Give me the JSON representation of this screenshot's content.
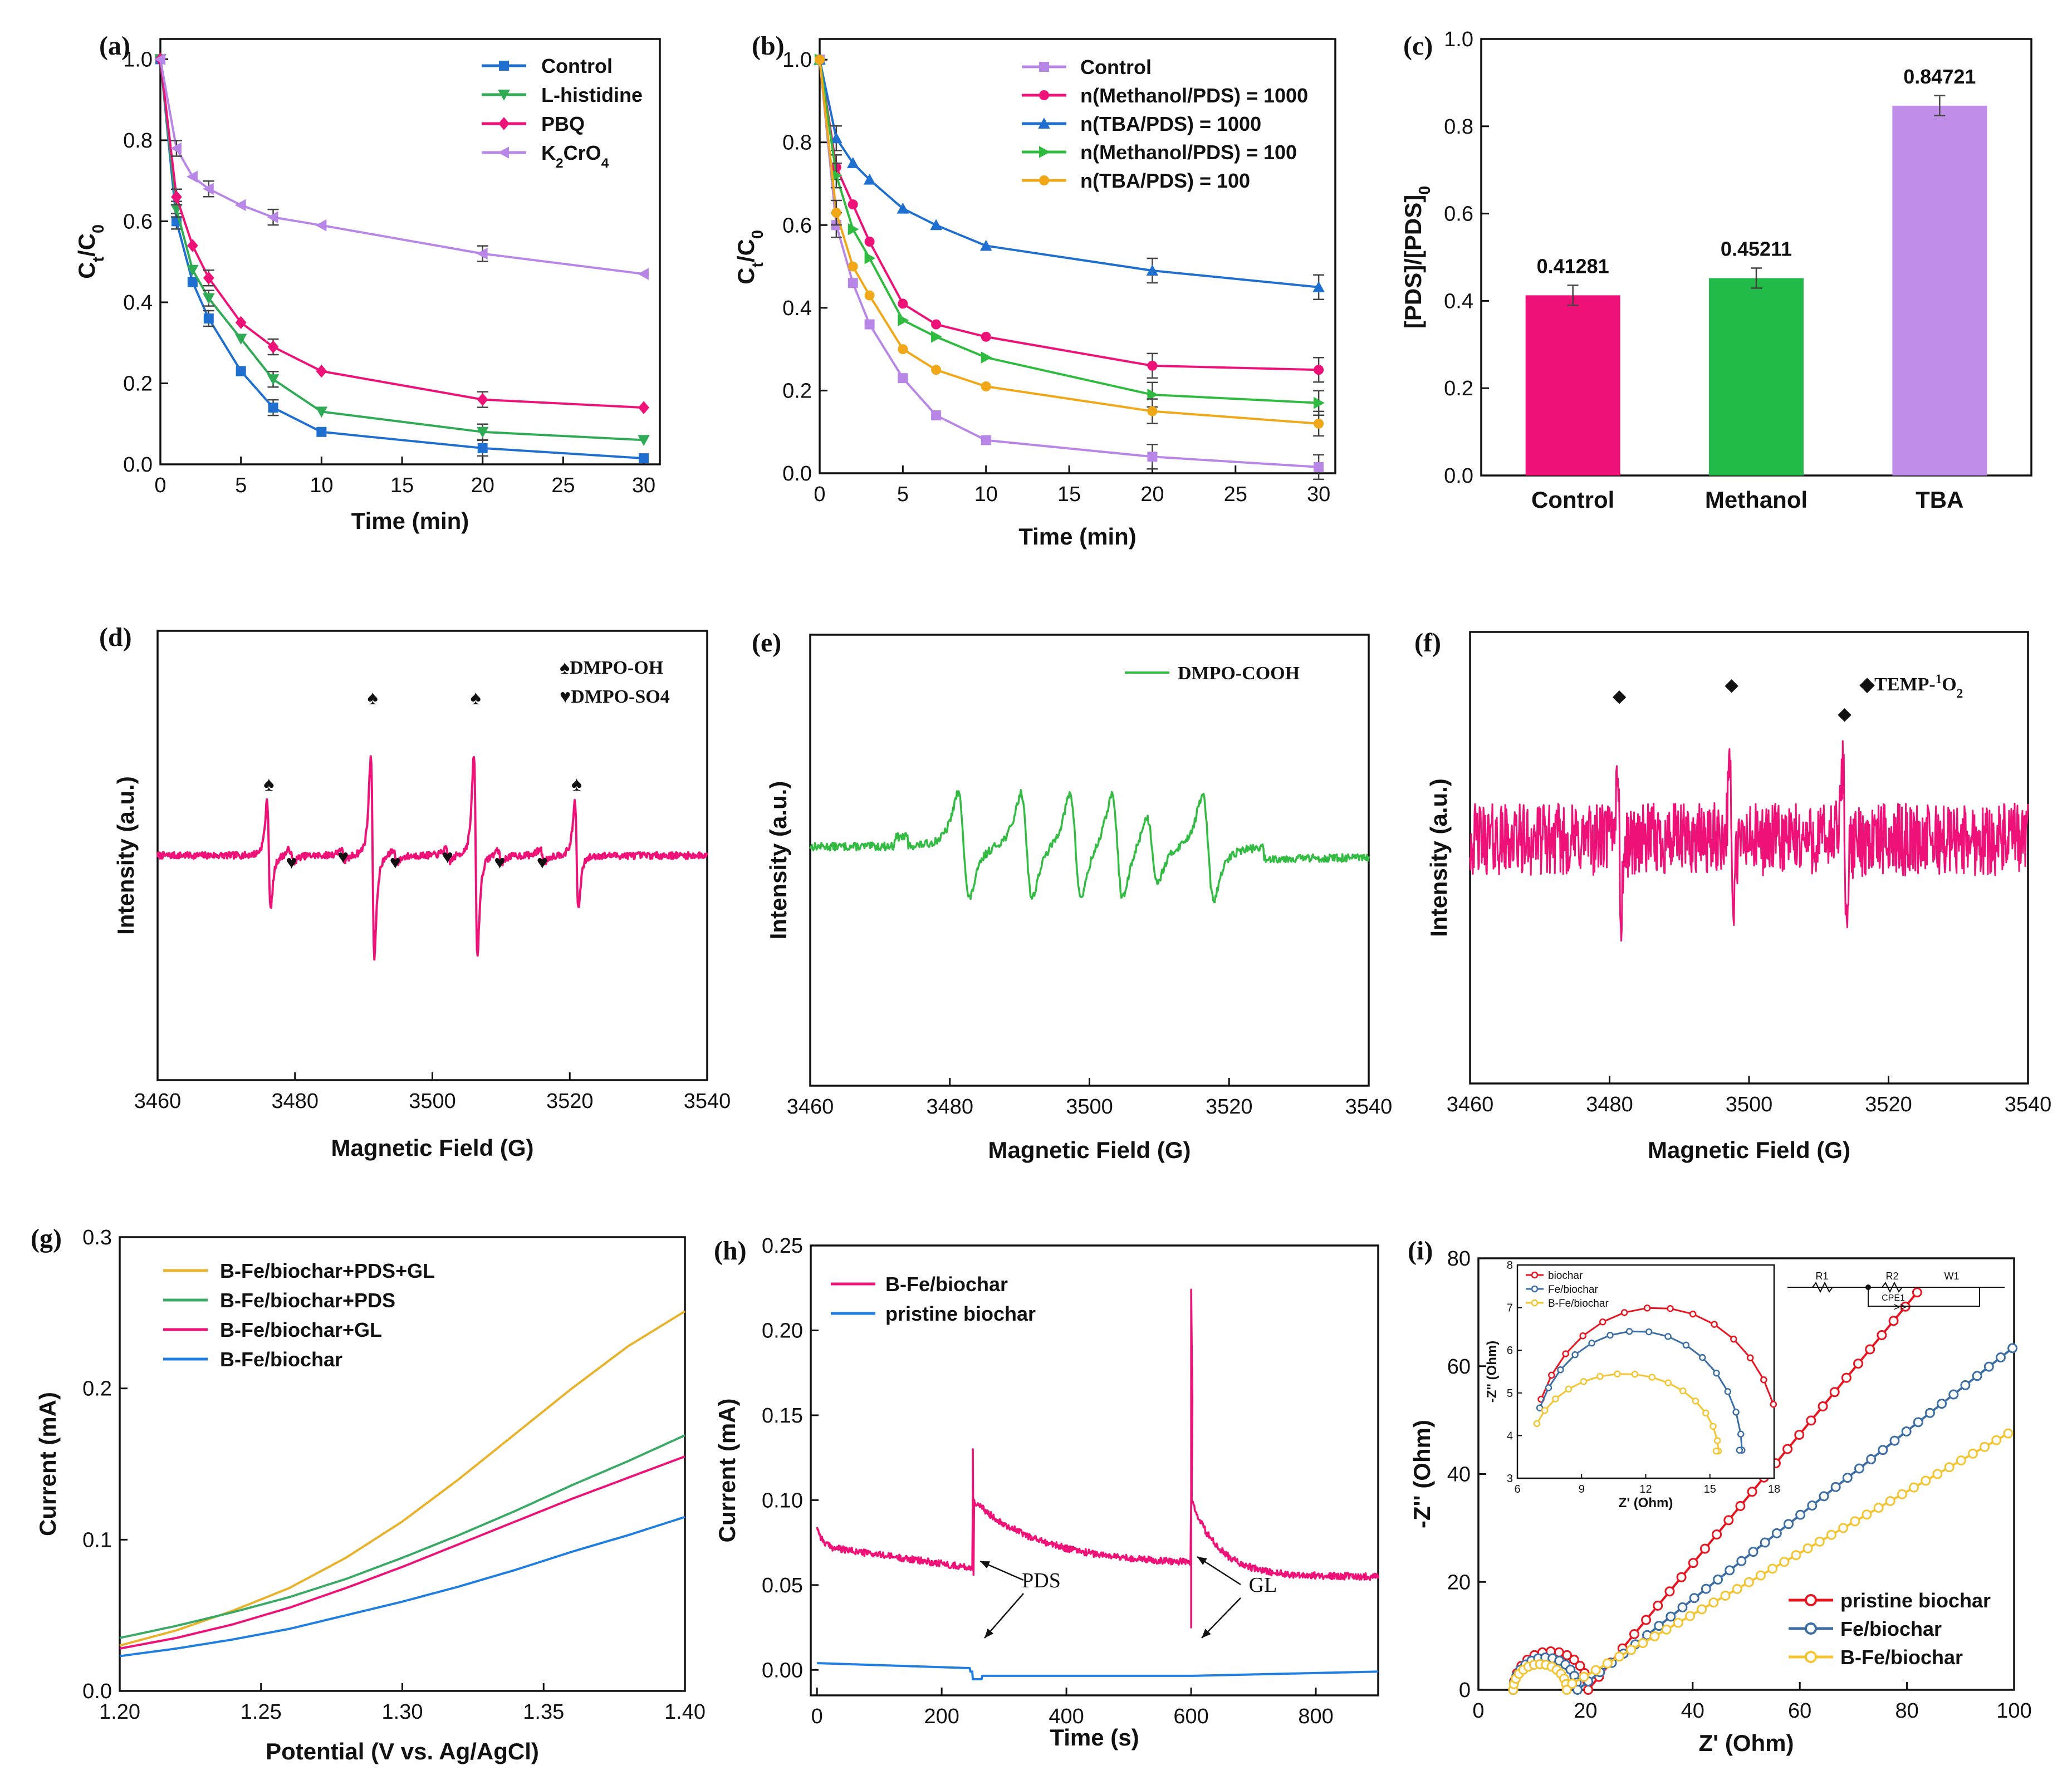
{
  "chart_data": [
    {
      "panel": "(a)",
      "type": "line",
      "xlabel": "Time (min)",
      "ylabel": "Ct/C0",
      "xlim": [
        0,
        31
      ],
      "ylim": [
        0,
        1.05
      ],
      "xticks": [
        0,
        5,
        10,
        15,
        20,
        25,
        30
      ],
      "yticks": [
        0.0,
        0.2,
        0.4,
        0.6,
        0.8,
        1.0
      ],
      "x": [
        0,
        1,
        2,
        3,
        5,
        7,
        10,
        20,
        30
      ],
      "series": [
        {
          "name": "Control",
          "color": "#1f6fd1",
          "marker": "square",
          "values": [
            1.0,
            0.6,
            0.45,
            0.36,
            0.23,
            0.14,
            0.08,
            0.04,
            0.015
          ]
        },
        {
          "name": "L-histidine",
          "color": "#2faa55",
          "marker": "tri-down",
          "values": [
            1.0,
            0.63,
            0.48,
            0.41,
            0.31,
            0.21,
            0.13,
            0.08,
            0.06
          ]
        },
        {
          "name": "PBQ",
          "color": "#ee1177",
          "marker": "diamond",
          "values": [
            1.0,
            0.66,
            0.54,
            0.46,
            0.35,
            0.29,
            0.23,
            0.16,
            0.14
          ]
        },
        {
          "name": "K2CrO4",
          "color": "#b886e6",
          "marker": "tri-left",
          "values": [
            1.0,
            0.78,
            0.71,
            0.68,
            0.64,
            0.61,
            0.59,
            0.52,
            0.47
          ]
        }
      ]
    },
    {
      "panel": "(b)",
      "type": "line",
      "xlabel": "Time (min)",
      "ylabel": "Ct/C0",
      "xlim": [
        0,
        31
      ],
      "ylim": [
        0,
        1.05
      ],
      "xticks": [
        0,
        5,
        10,
        15,
        20,
        25,
        30
      ],
      "yticks": [
        0.0,
        0.2,
        0.4,
        0.6,
        0.8,
        1.0
      ],
      "x": [
        0,
        1,
        2,
        3,
        5,
        7,
        10,
        20,
        30
      ],
      "series": [
        {
          "name": "Control",
          "color": "#b886e6",
          "marker": "square",
          "values": [
            1.0,
            0.6,
            0.46,
            0.36,
            0.23,
            0.14,
            0.08,
            0.04,
            0.015
          ]
        },
        {
          "name": "n(Methanol/PDS) = 1000",
          "color": "#ee1177",
          "marker": "circle",
          "values": [
            1.0,
            0.74,
            0.65,
            0.56,
            0.41,
            0.36,
            0.33,
            0.26,
            0.25
          ]
        },
        {
          "name": "n(TBA/PDS) = 1000",
          "color": "#1f6fd1",
          "marker": "tri-up",
          "values": [
            1.0,
            0.81,
            0.75,
            0.71,
            0.64,
            0.6,
            0.55,
            0.49,
            0.45
          ]
        },
        {
          "name": "n(Methanol/PDS) = 100",
          "color": "#2fbb3f",
          "marker": "tri-right",
          "values": [
            1.0,
            0.72,
            0.59,
            0.52,
            0.37,
            0.33,
            0.28,
            0.19,
            0.17
          ]
        },
        {
          "name": "n(TBA/PDS) = 100",
          "color": "#f0a818",
          "marker": "circle",
          "values": [
            1.0,
            0.63,
            0.5,
            0.43,
            0.3,
            0.25,
            0.21,
            0.15,
            0.12
          ]
        }
      ]
    },
    {
      "panel": "(c)",
      "type": "bar",
      "ylabel": "[PDS]/[PDS]0",
      "ylim": [
        0,
        1.0
      ],
      "yticks": [
        0.0,
        0.2,
        0.4,
        0.6,
        0.8,
        1.0
      ],
      "categories": [
        "Control",
        "Methanol",
        "TBA"
      ],
      "values": [
        0.41281,
        0.45211,
        0.84721
      ],
      "labels": [
        "0.41281",
        "0.45211",
        "0.84721"
      ],
      "colors": [
        "#ee1177",
        "#22bb4a",
        "#c08ee8"
      ]
    },
    {
      "panel": "(d)",
      "type": "line",
      "xlabel": "Magnetic Field (G)",
      "ylabel": "Intensity (a.u.)",
      "xlim": [
        3460,
        3540
      ],
      "xticks": [
        3460,
        3480,
        3500,
        3520,
        3540
      ],
      "series": [
        {
          "name": "EPR spectrum",
          "color": "#ee1177"
        }
      ],
      "peaks_oh": [
        3476.2,
        3491.3,
        3506.3,
        3521.0
      ],
      "peaks_so4": [
        3479.5,
        3487.0,
        3494.6,
        3502.2,
        3509.8,
        3516.0
      ],
      "legend": [
        "♠DMPO-OH",
        "♥DMPO-SO4"
      ],
      "spade": "♠",
      "heart": "♥"
    },
    {
      "panel": "(e)",
      "type": "line",
      "xlabel": "Magnetic Field (G)",
      "ylabel": "Intensity (a.u.)",
      "xlim": [
        3460,
        3540
      ],
      "xticks": [
        3460,
        3480,
        3500,
        3520,
        3540
      ],
      "series": [
        {
          "name": "DMPO-COOH",
          "color": "#33bb44"
        }
      ]
    },
    {
      "panel": "(f)",
      "type": "line",
      "xlabel": "Magnetic Field (G)",
      "ylabel": "Intensity (a.u.)",
      "xlim": [
        3460,
        3540
      ],
      "xticks": [
        3460,
        3480,
        3500,
        3520,
        3540
      ],
      "series": [
        {
          "name": "TEMP-1O2",
          "color": "#ee1177"
        }
      ],
      "peaks": [
        3481.4,
        3497.5,
        3513.7
      ],
      "legend": "◆TEMP-1O2",
      "diamond": "◆"
    },
    {
      "panel": "(g)",
      "type": "line",
      "xlabel": "Potential (V vs. Ag/AgCl)",
      "ylabel": "Current (mA)",
      "xlim": [
        1.2,
        1.4
      ],
      "ylim": [
        0,
        0.3
      ],
      "xticks": [
        1.2,
        1.25,
        1.3,
        1.35,
        1.4
      ],
      "yticks": [
        0.0,
        0.1,
        0.2,
        0.3
      ],
      "x": [
        1.2,
        1.22,
        1.24,
        1.26,
        1.28,
        1.3,
        1.32,
        1.34,
        1.36,
        1.38,
        1.4
      ],
      "series": [
        {
          "name": "B-Fe/biochar+PDS+GL",
          "color": "#e8b22a",
          "values": [
            0.03,
            0.04,
            0.053,
            0.068,
            0.088,
            0.112,
            0.14,
            0.17,
            0.2,
            0.228,
            0.251
          ]
        },
        {
          "name": "B-Fe/biochar+PDS",
          "color": "#3aaa66",
          "values": [
            0.035,
            0.043,
            0.052,
            0.062,
            0.074,
            0.088,
            0.103,
            0.119,
            0.136,
            0.152,
            0.169
          ]
        },
        {
          "name": "B-Fe/biochar+GL",
          "color": "#ee1177",
          "values": [
            0.028,
            0.035,
            0.044,
            0.055,
            0.068,
            0.082,
            0.097,
            0.112,
            0.127,
            0.141,
            0.155
          ]
        },
        {
          "name": "B-Fe/biochar",
          "color": "#1f7ee0",
          "values": [
            0.023,
            0.028,
            0.034,
            0.041,
            0.05,
            0.059,
            0.069,
            0.08,
            0.092,
            0.103,
            0.115
          ]
        }
      ]
    },
    {
      "panel": "(h)",
      "type": "line",
      "xlabel": "Time (s)",
      "ylabel": "Current (mA)",
      "xlim": [
        -10,
        900
      ],
      "ylim": [
        -0.015,
        0.25
      ],
      "xticks": [
        0,
        200,
        400,
        600,
        800
      ],
      "yticks": [
        0.0,
        0.05,
        0.1,
        0.15,
        0.2,
        0.25
      ],
      "series": [
        {
          "name": "B-Fe/biochar",
          "color": "#ee1177"
        },
        {
          "name": "pristine biochar",
          "color": "#1f7ee0"
        }
      ],
      "annotations": [
        "PDS",
        "GL"
      ]
    },
    {
      "panel": "(i)",
      "type": "scatter",
      "xlabel": "Z' (Ohm)",
      "ylabel": "-Z'' (Ohm)",
      "xlim": [
        0,
        100
      ],
      "ylim": [
        0,
        80
      ],
      "xticks": [
        0,
        20,
        40,
        60,
        80,
        100
      ],
      "yticks": [
        0,
        20,
        40,
        60,
        80
      ],
      "series": [
        {
          "name": "pristine biochar",
          "color": "#e8141f",
          "slope": 1.2,
          "x0": 20.5
        },
        {
          "name": "Fe/biochar",
          "color": "#3c6ea3",
          "slope": 0.78,
          "x0": 18.5
        },
        {
          "name": "B-Fe/biochar",
          "color": "#f4c531",
          "slope": 0.57,
          "x0": 15.5
        }
      ],
      "inset": {
        "xlabel": "Z' (Ohm)",
        "ylabel": "-Z'' (Ohm)",
        "xlim": [
          6,
          18
        ],
        "ylim": [
          3,
          8
        ],
        "xticks": [
          6,
          9,
          12,
          15,
          18
        ],
        "yticks": [
          3,
          4,
          5,
          6,
          7,
          8
        ],
        "legend": [
          "biochar",
          "Fe/biochar",
          "B-Fe/biochar"
        ],
        "circuit": [
          "R1",
          "R2",
          "W1",
          "CPE1"
        ]
      }
    }
  ]
}
